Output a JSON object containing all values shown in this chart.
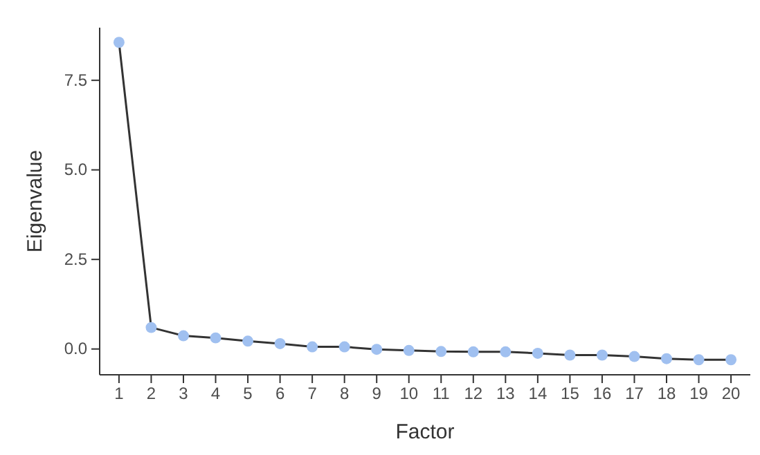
{
  "chart_data": {
    "type": "line",
    "xlabel": "Factor",
    "ylabel": "Eigenvalue",
    "x": [
      1,
      2,
      3,
      4,
      5,
      6,
      7,
      8,
      9,
      10,
      11,
      12,
      13,
      14,
      15,
      16,
      17,
      18,
      19,
      20
    ],
    "series": [
      {
        "color": "#a0c0f0",
        "values": [
          8.56,
          0.6,
          0.37,
          0.31,
          0.22,
          0.15,
          0.06,
          0.06,
          -0.01,
          -0.04,
          -0.07,
          -0.08,
          -0.08,
          -0.12,
          -0.17,
          -0.17,
          -0.21,
          -0.27,
          -0.3,
          -0.3
        ]
      }
    ],
    "xlim": [
      0.4,
      20.6
    ],
    "ylim": [
      -0.72,
      8.97
    ],
    "xticks": [
      1,
      2,
      3,
      4,
      5,
      6,
      7,
      8,
      9,
      10,
      11,
      12,
      13,
      14,
      15,
      16,
      17,
      18,
      19,
      20
    ],
    "yticks": [
      {
        "value": 0,
        "label": "0.0"
      },
      {
        "value": 2.5,
        "label": "2.5"
      },
      {
        "value": 5,
        "label": "5.0"
      },
      {
        "value": 7.5,
        "label": "7.5"
      }
    ],
    "grid": false,
    "marker": "circle",
    "line_style": "solid"
  }
}
